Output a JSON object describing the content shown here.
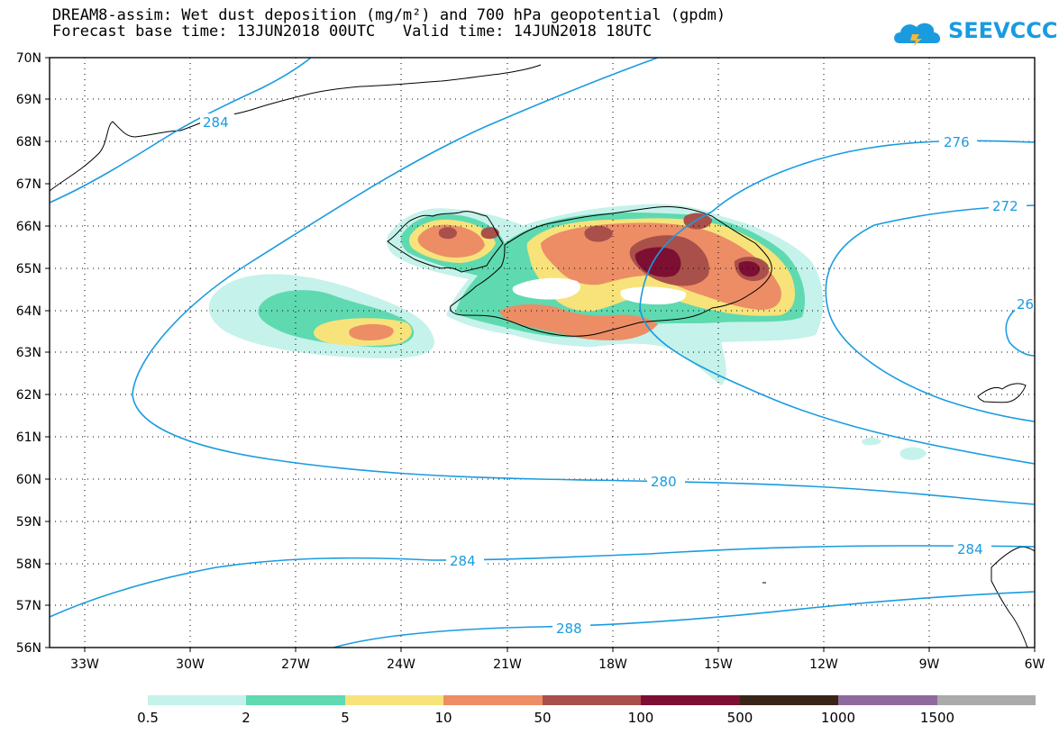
{
  "header": {
    "title_line1": "DREAM8-assim: Wet dust deposition (mg/m²) and 700 hPa geopotential (gpdm)",
    "title_line2": "Forecast base time: 13JUN2018 00UTC   Valid time: 14JUN2018 18UTC",
    "logo_text": "SEEVCCC"
  },
  "axes": {
    "lat_labels": [
      "70N",
      "69N",
      "68N",
      "67N",
      "66N",
      "65N",
      "64N",
      "63N",
      "62N",
      "61N",
      "60N",
      "59N",
      "58N",
      "57N",
      "56N"
    ],
    "lon_labels": [
      "33W",
      "30W",
      "27W",
      "24W",
      "21W",
      "18W",
      "15W",
      "12W",
      "9W",
      "6W"
    ]
  },
  "contours": {
    "labels": [
      "284",
      "276",
      "272",
      "26",
      "280",
      "284",
      "284",
      "288"
    ],
    "color": "#1a9be0"
  },
  "legend": {
    "labels": [
      "0.5",
      "2",
      "5",
      "10",
      "50",
      "100",
      "500",
      "1000",
      "1500"
    ],
    "colors": [
      "#c5f2ea",
      "#5fd9b0",
      "#f7e37a",
      "#ec8d66",
      "#a9504a",
      "#7d0f33",
      "#3a2417",
      "#8f6a9f",
      "#aaaaaa"
    ]
  }
}
